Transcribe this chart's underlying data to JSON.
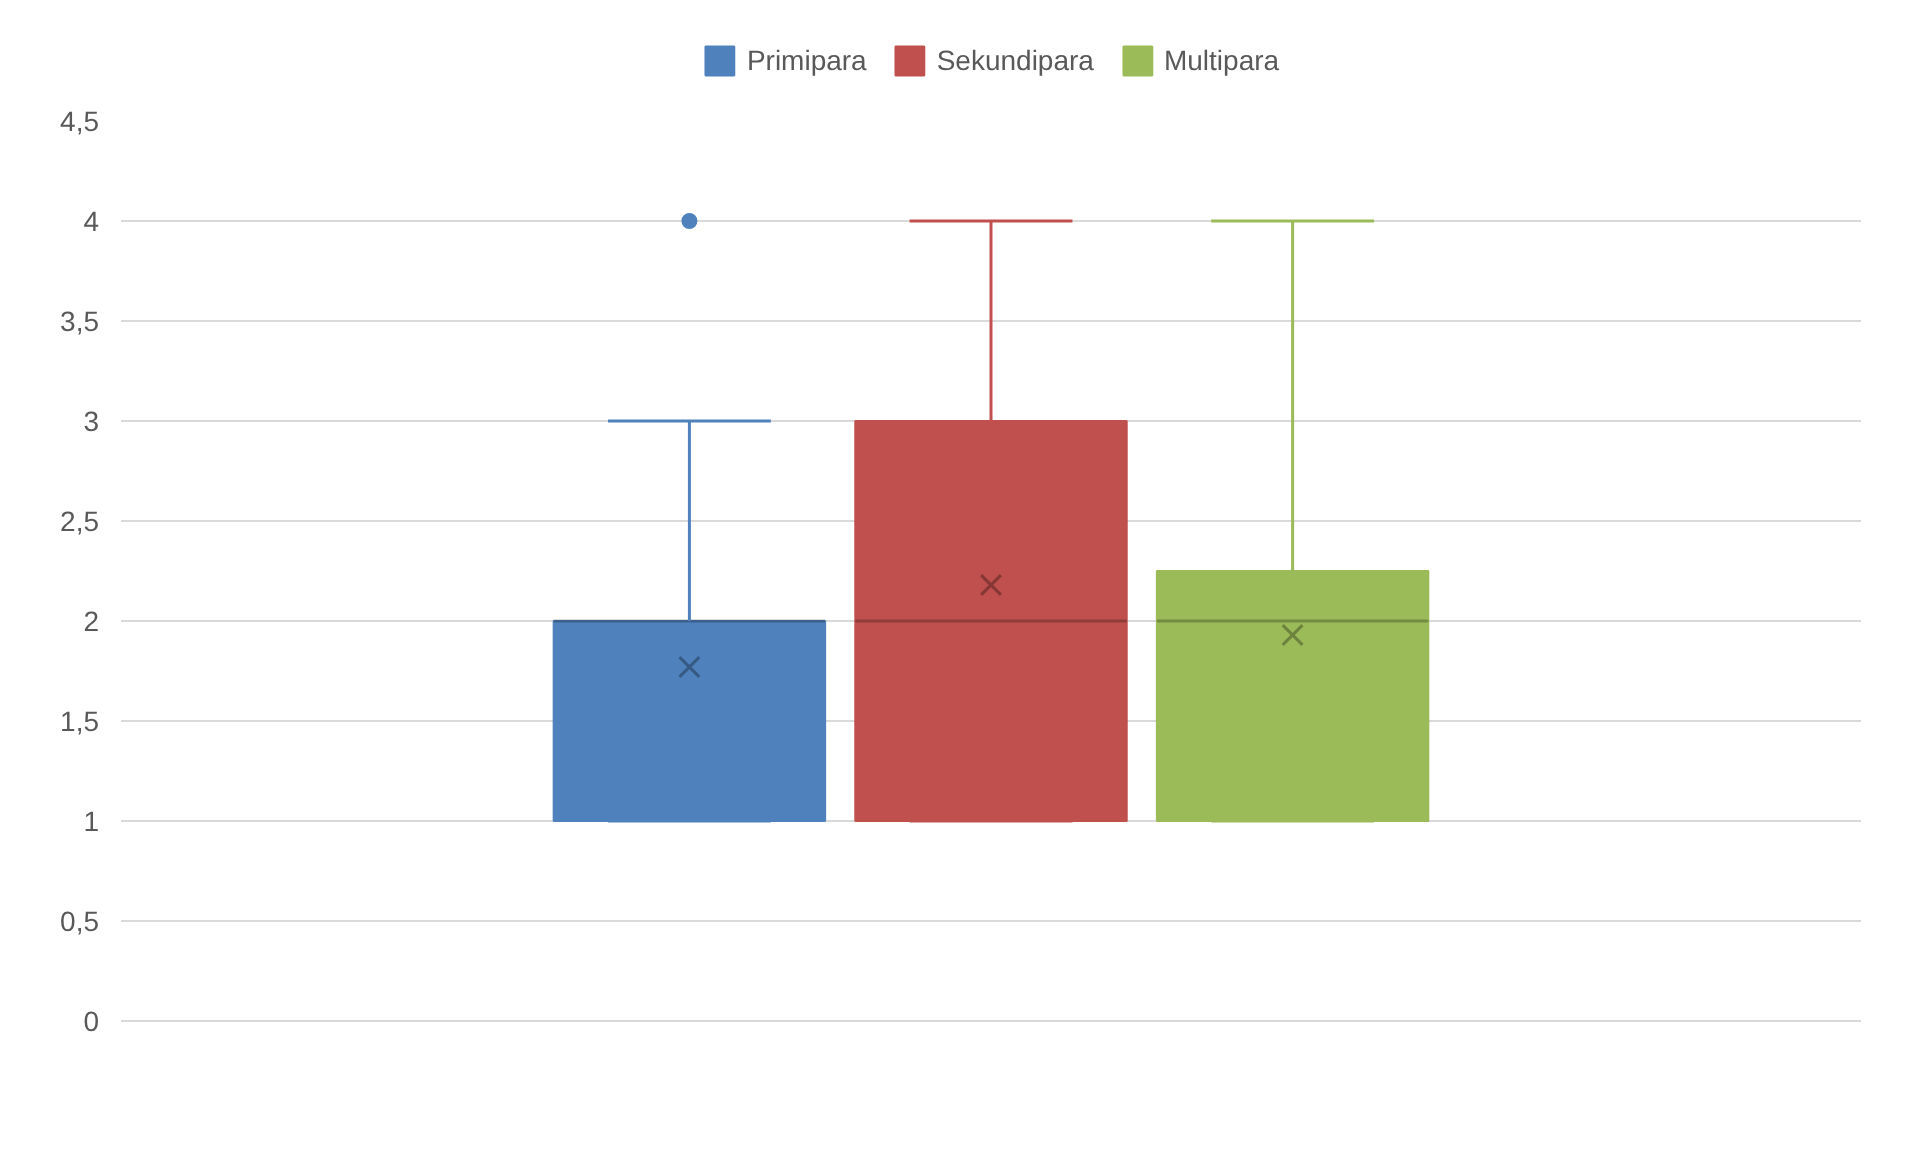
{
  "chart_data": {
    "type": "box",
    "categories": [
      null
    ],
    "series": [
      {
        "name": "Primipara",
        "color": "#4f81bd",
        "boxes": [
          {
            "low": 1,
            "q1": 1,
            "median": 2,
            "q3": 2,
            "high": 3,
            "mean": 1.77,
            "outliers": [
              4
            ]
          }
        ]
      },
      {
        "name": "Sekundipara",
        "color": "#c0504d",
        "boxes": [
          {
            "low": 1,
            "q1": 1,
            "median": 2,
            "q3": 3,
            "high": 4,
            "mean": 2.18
          }
        ]
      },
      {
        "name": "Multipara",
        "color": "#9bbb59",
        "boxes": [
          {
            "low": 1,
            "q1": 1,
            "median": 2,
            "q3": 2.25,
            "high": 4,
            "mean": 1.93
          }
        ]
      }
    ],
    "ylim": [
      0,
      4.5
    ],
    "yticks": [
      0,
      {
        "value": 0.5,
        "label": "0,5"
      },
      1,
      {
        "value": 1.5,
        "label": "1,5"
      },
      2,
      {
        "value": 2.5,
        "label": "2,5"
      },
      3,
      {
        "value": 3.5,
        "label": "3,5"
      },
      4,
      {
        "value": 4.5,
        "label": "4,5"
      }
    ],
    "grid": "y",
    "legend": "top",
    "tick_labels": "y"
  }
}
